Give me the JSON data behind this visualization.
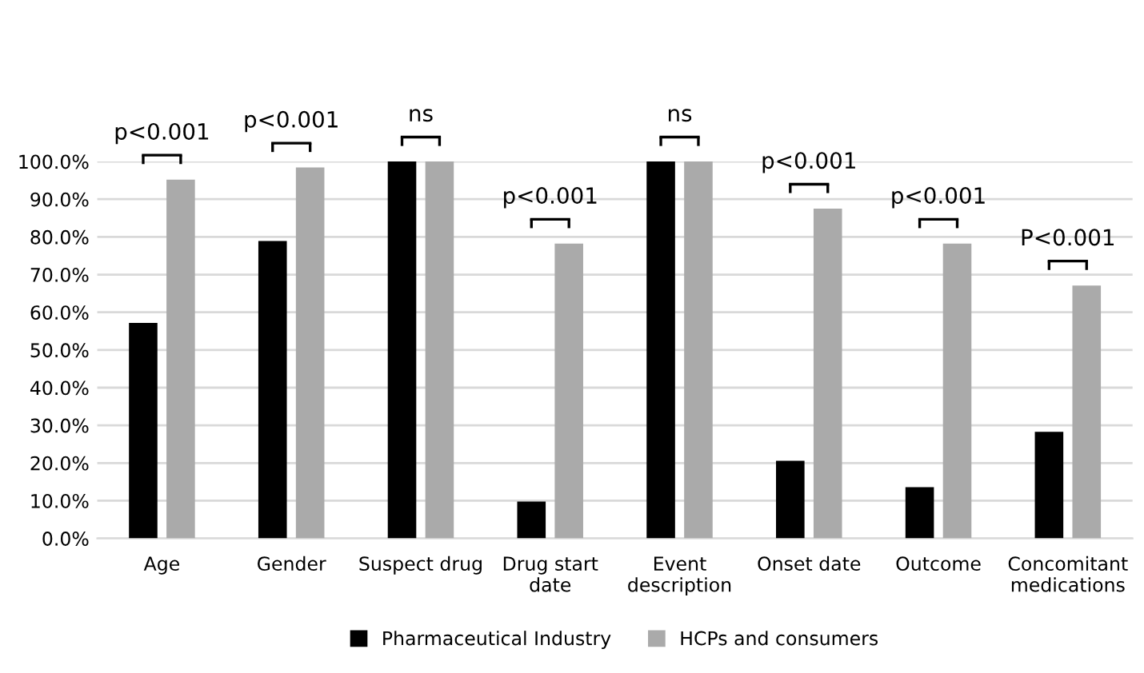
{
  "chart_data": {
    "type": "bar",
    "categories": [
      "Age",
      "Gender",
      "Suspect drug",
      "Drug start\ndate",
      "Event\ndescription",
      "Onset date",
      "Outcome",
      "Concomitant\nmedications"
    ],
    "series": [
      {
        "name": "Pharmaceutical Industry",
        "color": "#000000",
        "values": [
          57.2,
          78.9,
          100,
          9.8,
          100,
          20.6,
          13.6,
          28.3
        ]
      },
      {
        "name": "HCPs and consumers",
        "color": "#aaaaaa",
        "values": [
          95.2,
          98.4,
          100,
          78.2,
          100,
          87.5,
          78.2,
          67.1
        ]
      }
    ],
    "ylim": [
      0,
      100
    ],
    "yticks": [
      {
        "value": 0,
        "label": "0.0%"
      },
      {
        "value": 10,
        "label": "10.0%"
      },
      {
        "value": 20,
        "label": "20.0%"
      },
      {
        "value": 30,
        "label": "30.0%"
      },
      {
        "value": 40,
        "label": "40.0%"
      },
      {
        "value": 50,
        "label": "50.0%"
      },
      {
        "value": 60,
        "label": "60.0%"
      },
      {
        "value": 70,
        "label": "70.0%"
      },
      {
        "value": 80,
        "label": "80.0%"
      },
      {
        "value": 90,
        "label": "90.0%"
      },
      {
        "value": 100,
        "label": "100.0%"
      }
    ],
    "grid": "y",
    "legend": "bottom",
    "annotations": [
      {
        "text": "p<0.001",
        "x": "Age",
        "y": 95.2
      },
      {
        "text": "p<0.001",
        "x": "Gender",
        "y": 98.4
      },
      {
        "text": "ns",
        "x": "Suspect drug",
        "y": 100
      },
      {
        "text": "p<0.001",
        "x": "Drug start\ndate",
        "y": 78.2
      },
      {
        "text": "ns",
        "x": "Event\ndescription",
        "y": 100
      },
      {
        "text": "p<0.001",
        "x": "Onset date",
        "y": 87.5
      },
      {
        "text": "p<0.001",
        "x": "Outcome",
        "y": 78.2
      },
      {
        "text": "P<0.001",
        "x": "Concomitant\nmedications",
        "y": 67.1
      }
    ]
  }
}
